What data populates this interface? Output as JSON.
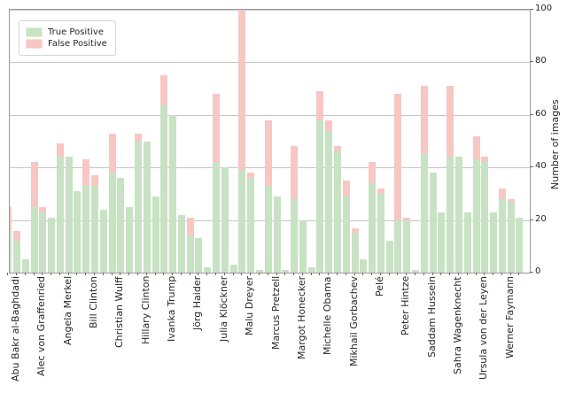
{
  "chart_data": {
    "type": "bar",
    "variant": "grouped-stacked",
    "bars_per_group": 3,
    "title": "",
    "xlabel": "",
    "ylabel": "Number of images",
    "yticks": [
      0,
      20,
      40,
      60,
      80,
      100
    ],
    "ylim": [
      0,
      100
    ],
    "grid": true,
    "legend_position": "upper left",
    "categories": [
      "Abu Bakr al-Baghdadi",
      "Alec von Graffenried",
      "Angela Merkel",
      "Bill Clinton",
      "Christian Wulff",
      "Hillary Clinton",
      "Ivanka Trump",
      "Jörg Haider",
      "Julia Klöckner",
      "Malu Dreyer",
      "Marcus Pretzell",
      "Margot Honecker",
      "Michelle Obama",
      "Mikhail Gorbachev",
      "Pelé",
      "Peter Hintze",
      "Saddam Hussein",
      "Sahra Wagenknecht",
      "Ursula von der Leyen",
      "Werner Faymann"
    ],
    "series": [
      {
        "name": "True Positive",
        "color": "#c8e2c4",
        "values": [
          [
            16,
            12,
            5
          ],
          [
            25,
            23,
            21
          ],
          [
            44,
            44,
            31
          ],
          [
            33,
            33,
            24
          ],
          [
            38,
            36,
            25
          ],
          [
            50,
            50,
            29
          ],
          [
            64,
            60,
            22
          ],
          [
            14,
            13,
            2
          ],
          [
            42,
            40,
            3
          ],
          [
            39,
            36,
            1
          ],
          [
            33,
            29,
            1
          ],
          [
            28,
            20,
            2
          ],
          [
            58,
            54,
            46
          ],
          [
            29,
            15,
            5
          ],
          [
            34,
            30,
            12
          ],
          [
            20,
            20,
            1
          ],
          [
            45,
            38,
            23
          ],
          [
            44,
            44,
            23
          ],
          [
            43,
            42,
            23
          ],
          [
            28,
            27,
            21
          ]
        ]
      },
      {
        "name": "False Positive",
        "color": "#f7c7c4",
        "values": [
          [
            9,
            4,
            0
          ],
          [
            17,
            2,
            0
          ],
          [
            5,
            0,
            0
          ],
          [
            10,
            4,
            0
          ],
          [
            15,
            0,
            0
          ],
          [
            3,
            0,
            0
          ],
          [
            11,
            0,
            0
          ],
          [
            7,
            0,
            0
          ],
          [
            26,
            0,
            0
          ],
          [
            61,
            2,
            0
          ],
          [
            25,
            0,
            0
          ],
          [
            20,
            0,
            0
          ],
          [
            11,
            4,
            2
          ],
          [
            6,
            2,
            0
          ],
          [
            8,
            2,
            0
          ],
          [
            48,
            1,
            0
          ],
          [
            26,
            0,
            0
          ],
          [
            27,
            0,
            0
          ],
          [
            9,
            2,
            0
          ],
          [
            4,
            1,
            0
          ]
        ]
      }
    ]
  },
  "colors": {
    "true_positive": "#c8e2c4",
    "false_positive": "#f7c7c4",
    "gridline": "#c6c6c6",
    "spine": "#9a9a9a",
    "text": "#262626"
  }
}
